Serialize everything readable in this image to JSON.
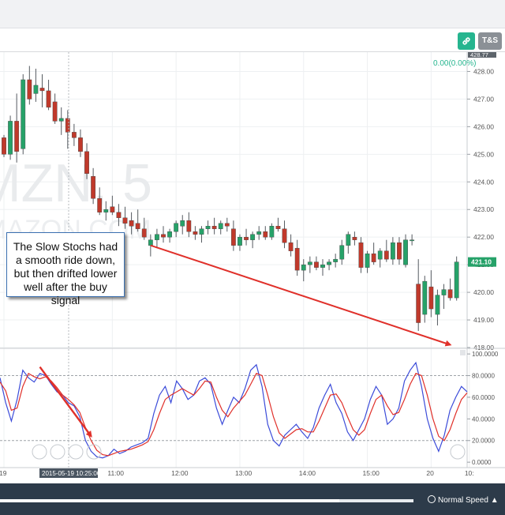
{
  "header": {
    "link_icon": "link-icon",
    "ts_label": "T&S"
  },
  "note": {
    "text": "The Slow Stochs had a smooth ride down, but then drifted lower well after the buy signal"
  },
  "footer": {
    "speed_label": "Normal Speed",
    "speed_icon": "speed-gauge-icon",
    "speed_caret": "▲",
    "progress": 0.82
  },
  "colors": {
    "up_candle": "#26a269",
    "down_candle": "#c0392b",
    "fast_line": "#3b4bd9",
    "slow_line": "#e0302a",
    "arrow": "#e0302a",
    "accent": "#26b58f"
  },
  "chart_data": [
    {
      "type": "candlestick",
      "watermark_symbol": "MZN, 5",
      "watermark_name": "MAZON.COM",
      "last_price_label": "428.77",
      "change_label": "0.00(0.00%)",
      "current_price_label": "421.10",
      "ylim": [
        418,
        428.7
      ],
      "yticks": [
        "418.00",
        "419.00",
        "420.00",
        "421.00",
        "422.00",
        "423.00",
        "424.00",
        "425.00",
        "426.00",
        "427.00",
        "428.00"
      ],
      "x_ticks": [
        {
          "label": "19",
          "index": 0
        },
        {
          "label": "11:00",
          "index": 17
        },
        {
          "label": "12:00",
          "index": 27
        },
        {
          "label": "13:00",
          "index": 37
        },
        {
          "label": "14:00",
          "index": 47
        },
        {
          "label": "15:00",
          "index": 57
        },
        {
          "label": "20",
          "index": 67
        },
        {
          "label": "10:",
          "index": 73
        }
      ],
      "cursor_label": "2015-05-19 10:25:00",
      "candles": [
        [
          425.6,
          425.7,
          424.9,
          425.0
        ],
        [
          425.0,
          426.4,
          424.8,
          426.2
        ],
        [
          426.2,
          427.2,
          424.7,
          425.1
        ],
        [
          425.2,
          427.9,
          425.0,
          427.7
        ],
        [
          427.7,
          428.2,
          426.8,
          427.0
        ],
        [
          427.2,
          428.1,
          426.9,
          427.5
        ],
        [
          427.4,
          427.9,
          426.7,
          427.3
        ],
        [
          427.3,
          427.7,
          426.6,
          426.7
        ],
        [
          426.9,
          427.2,
          426.1,
          426.2
        ],
        [
          426.2,
          426.7,
          425.7,
          426.3
        ],
        [
          426.3,
          426.6,
          425.2,
          425.8
        ],
        [
          425.8,
          426.1,
          425.3,
          425.6
        ],
        [
          425.6,
          425.9,
          424.9,
          425.1
        ],
        [
          425.1,
          425.4,
          424.1,
          424.3
        ],
        [
          424.2,
          424.5,
          423.2,
          423.4
        ],
        [
          423.4,
          423.8,
          422.8,
          422.9
        ],
        [
          422.9,
          423.3,
          422.6,
          423.0
        ],
        [
          423.1,
          423.5,
          422.8,
          422.9
        ],
        [
          422.9,
          423.2,
          422.4,
          422.7
        ],
        [
          422.7,
          423.1,
          422.3,
          422.5
        ],
        [
          422.6,
          422.9,
          422.1,
          422.4
        ],
        [
          422.5,
          423.0,
          422.2,
          422.3
        ],
        [
          422.3,
          422.7,
          421.9,
          422.0
        ],
        [
          421.7,
          422.1,
          421.3,
          421.9
        ],
        [
          421.9,
          422.3,
          421.6,
          422.1
        ],
        [
          422.1,
          422.4,
          421.8,
          422.0
        ],
        [
          422.0,
          422.3,
          421.8,
          422.2
        ],
        [
          422.2,
          422.6,
          422.0,
          422.5
        ],
        [
          422.4,
          422.8,
          422.1,
          422.6
        ],
        [
          422.6,
          422.9,
          422.0,
          422.2
        ],
        [
          422.2,
          422.4,
          421.9,
          422.1
        ],
        [
          422.1,
          422.4,
          421.8,
          422.3
        ],
        [
          422.3,
          422.6,
          422.1,
          422.4
        ],
        [
          422.4,
          422.7,
          422.1,
          422.3
        ],
        [
          422.3,
          422.6,
          422.1,
          422.5
        ],
        [
          422.5,
          422.7,
          422.2,
          422.4
        ],
        [
          422.3,
          422.6,
          421.5,
          421.7
        ],
        [
          421.7,
          422.1,
          421.5,
          422.0
        ],
        [
          422.0,
          422.3,
          421.7,
          421.9
        ],
        [
          421.9,
          422.2,
          421.6,
          422.1
        ],
        [
          422.1,
          422.4,
          421.9,
          422.2
        ],
        [
          422.2,
          422.4,
          421.9,
          422.0
        ],
        [
          422.0,
          422.5,
          421.9,
          422.4
        ],
        [
          422.4,
          422.7,
          422.2,
          422.3
        ],
        [
          422.3,
          422.6,
          421.6,
          421.8
        ],
        [
          421.8,
          422.1,
          421.3,
          421.5
        ],
        [
          421.6,
          421.9,
          420.6,
          420.8
        ],
        [
          420.8,
          421.2,
          420.4,
          421.0
        ],
        [
          421.0,
          421.3,
          420.7,
          421.1
        ],
        [
          421.1,
          421.3,
          420.8,
          420.9
        ],
        [
          420.9,
          421.2,
          420.6,
          421.0
        ],
        [
          421.0,
          421.2,
          420.8,
          421.1
        ],
        [
          421.1,
          421.4,
          420.9,
          421.2
        ],
        [
          421.2,
          421.9,
          421.0,
          421.7
        ],
        [
          421.7,
          422.2,
          421.4,
          422.1
        ],
        [
          422.0,
          422.2,
          421.7,
          421.9
        ],
        [
          421.8,
          422.0,
          420.7,
          420.9
        ],
        [
          420.9,
          421.5,
          420.7,
          421.4
        ],
        [
          421.4,
          421.8,
          421.0,
          421.1
        ],
        [
          421.2,
          421.6,
          420.9,
          421.5
        ],
        [
          421.5,
          421.9,
          421.1,
          421.2
        ],
        [
          421.2,
          422.0,
          421.0,
          421.8
        ],
        [
          421.8,
          422.0,
          421.0,
          421.2
        ],
        [
          421.0,
          422.1,
          420.9,
          421.9
        ],
        [
          421.9,
          422.1,
          421.7,
          421.9
        ],
        [
          420.3,
          421.2,
          418.6,
          418.9
        ],
        [
          419.2,
          420.6,
          418.9,
          420.4
        ],
        [
          420.2,
          420.8,
          419.1,
          419.4
        ],
        [
          419.2,
          420.1,
          418.8,
          419.9
        ],
        [
          419.9,
          420.3,
          419.4,
          420.1
        ],
        [
          420.1,
          420.5,
          419.7,
          419.8
        ],
        [
          419.8,
          421.3,
          419.7,
          421.1
        ]
      ],
      "annotation_arrow": {
        "from": [
          23,
          421.7
        ],
        "to": [
          70,
          418.1
        ]
      }
    },
    {
      "type": "line",
      "title": "",
      "ylim": [
        -5,
        103
      ],
      "yticks": [
        "0.0000",
        "20.0000",
        "40.0000",
        "60.0000",
        "80.0000",
        "100.0000"
      ],
      "reference_lines": [
        20,
        80
      ],
      "series": [
        {
          "key": "fast",
          "values": [
            78,
            55,
            38,
            58,
            85,
            78,
            74,
            82,
            80,
            72,
            65,
            62,
            55,
            52,
            42,
            20,
            10,
            5,
            4,
            6,
            12,
            8,
            10,
            14,
            16,
            18,
            22,
            45,
            62,
            70,
            55,
            75,
            68,
            58,
            62,
            75,
            78,
            72,
            50,
            35,
            48,
            60,
            55,
            68,
            85,
            90,
            70,
            35,
            20,
            15,
            25,
            30,
            35,
            28,
            22,
            32,
            50,
            62,
            72,
            55,
            45,
            28,
            20,
            30,
            40,
            58,
            70,
            62,
            35,
            40,
            50,
            75,
            85,
            92,
            70,
            40,
            22,
            10,
            25,
            48,
            60,
            70,
            65
          ]
        },
        {
          "key": "slow",
          "values": [
            74,
            66,
            48,
            50,
            70,
            82,
            79,
            77,
            79,
            75,
            69,
            62,
            58,
            53,
            46,
            32,
            20,
            11,
            7,
            6,
            8,
            10,
            11,
            12,
            14,
            16,
            19,
            30,
            45,
            58,
            62,
            65,
            68,
            65,
            62,
            68,
            75,
            74,
            60,
            48,
            42,
            50,
            56,
            62,
            72,
            82,
            80,
            62,
            42,
            27,
            22,
            26,
            30,
            31,
            28,
            28,
            38,
            50,
            62,
            63,
            55,
            42,
            30,
            25,
            30,
            45,
            58,
            62,
            52,
            44,
            46,
            58,
            72,
            82,
            80,
            62,
            40,
            24,
            20,
            30,
            45,
            58,
            64
          ]
        }
      ],
      "annotation_arrow": {
        "from": [
          7,
          88
        ],
        "to": [
          16,
          24
        ]
      }
    }
  ]
}
